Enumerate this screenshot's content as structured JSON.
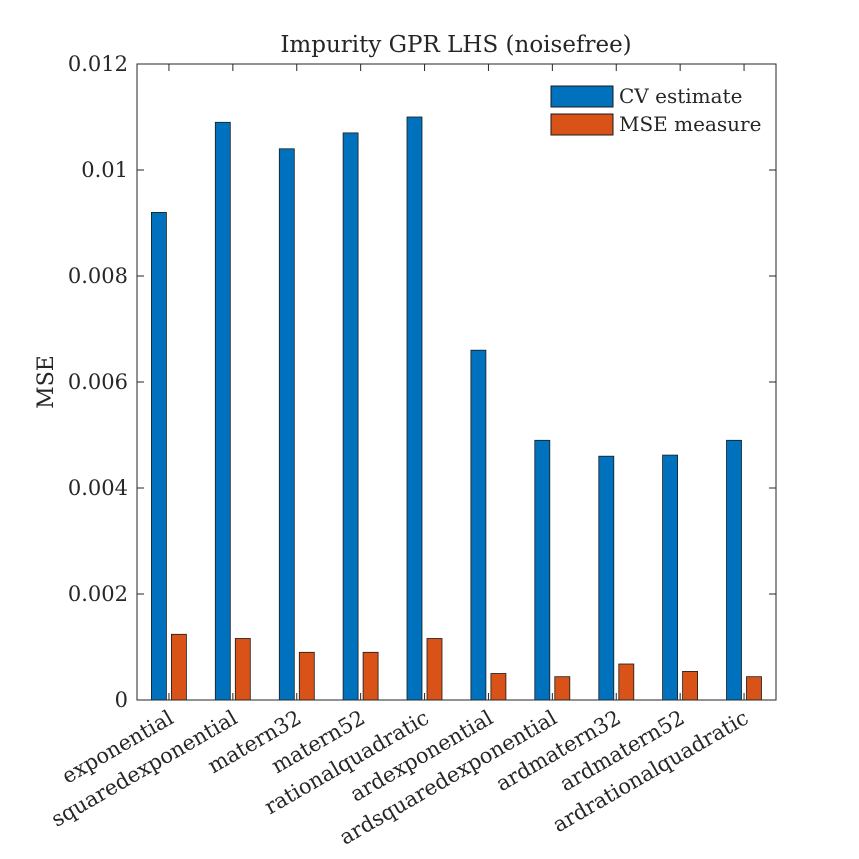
{
  "chart_data": {
    "type": "bar",
    "title": "Impurity GPR LHS (noisefree)",
    "xlabel": "",
    "ylabel": "MSE",
    "ylim": [
      0,
      0.012
    ],
    "yticks": [
      0,
      0.002,
      0.004,
      0.006,
      0.008,
      0.01,
      0.012
    ],
    "ytick_labels": [
      "0",
      "0.002",
      "0.004",
      "0.006",
      "0.008",
      "0.01",
      "0.012"
    ],
    "grid": false,
    "legend_position": "top-right",
    "categories": [
      "exponential",
      "squaredexponential",
      "matern32",
      "matern52",
      "rationalquadratic",
      "ardexponential",
      "ardsquaredexponential",
      "ardmatern32",
      "ardmatern52",
      "ardrationalquadratic"
    ],
    "series": [
      {
        "name": "CV estimate",
        "color": "#0072BD",
        "values": [
          0.0092,
          0.0109,
          0.0104,
          0.0107,
          0.011,
          0.0066,
          0.0049,
          0.0046,
          0.00462,
          0.0049
        ]
      },
      {
        "name": "MSE measure",
        "color": "#D95319",
        "values": [
          0.00124,
          0.00116,
          0.0009,
          0.0009,
          0.00116,
          0.0005,
          0.00044,
          0.00068,
          0.00054,
          0.00044
        ]
      }
    ]
  }
}
